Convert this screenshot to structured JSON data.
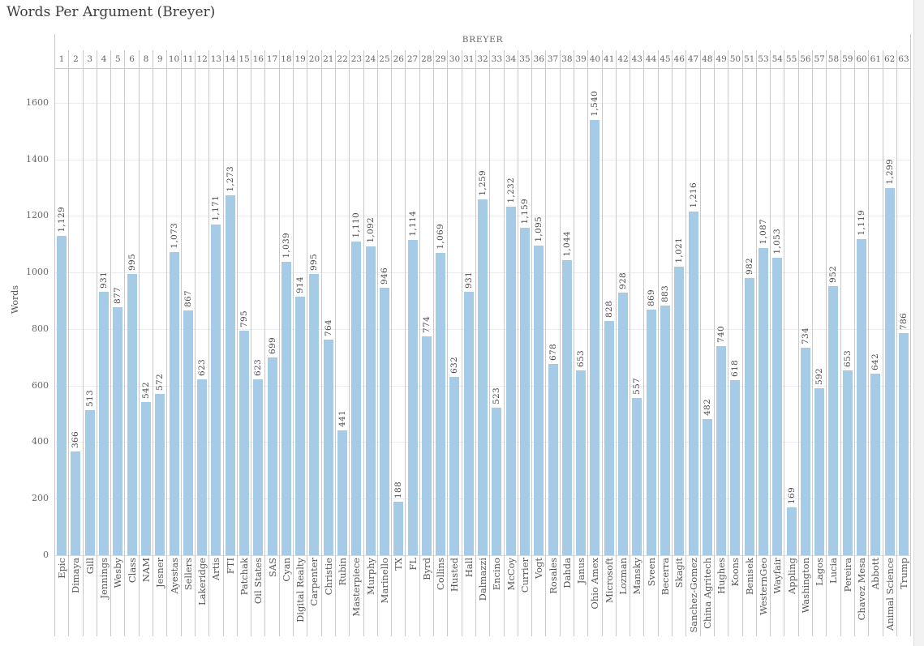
{
  "title": "Words Per Argument (Breyer)",
  "chart_data": {
    "type": "bar",
    "title": "Words Per Argument (Breyer)",
    "top_axis_title": "BREYER",
    "xlabel": "",
    "ylabel": "Words",
    "ylim": [
      0,
      1600
    ],
    "yticks": [
      0,
      200,
      400,
      600,
      800,
      1000,
      1200,
      1400,
      1600
    ],
    "grid": true,
    "bar_color": "#a5cbe6",
    "columns": [
      {
        "num": "1",
        "label": "Epic",
        "value": 1129
      },
      {
        "num": "2",
        "label": "Dimaya",
        "value": 366
      },
      {
        "num": "3",
        "label": "Gill",
        "value": 513
      },
      {
        "num": "4",
        "label": "Jennings",
        "value": 931
      },
      {
        "num": "5",
        "label": "Wesby",
        "value": 877
      },
      {
        "num": "6",
        "label": "Class",
        "value": 995
      },
      {
        "num": "8",
        "label": "NAM",
        "value": 542
      },
      {
        "num": "9",
        "label": "Jesner",
        "value": 572
      },
      {
        "num": "10",
        "label": "Ayestas",
        "value": 1073
      },
      {
        "num": "11",
        "label": "Sellers",
        "value": 867
      },
      {
        "num": "12",
        "label": "Lakeridge",
        "value": 623
      },
      {
        "num": "13",
        "label": "Artis",
        "value": 1171
      },
      {
        "num": "14",
        "label": "FTI",
        "value": 1273
      },
      {
        "num": "15",
        "label": "Patchak",
        "value": 795
      },
      {
        "num": "16",
        "label": "Oil States",
        "value": 623
      },
      {
        "num": "17",
        "label": "SAS",
        "value": 699
      },
      {
        "num": "18",
        "label": "Cyan",
        "value": 1039
      },
      {
        "num": "19",
        "label": "Digital Realty",
        "value": 914
      },
      {
        "num": "20",
        "label": "Carpenter",
        "value": 995
      },
      {
        "num": "21",
        "label": "Christie",
        "value": 764
      },
      {
        "num": "22",
        "label": "Rubin",
        "value": 441
      },
      {
        "num": "23",
        "label": "Masterpiece",
        "value": 1110
      },
      {
        "num": "24",
        "label": "Murphy",
        "value": 1092
      },
      {
        "num": "25",
        "label": "Marinello",
        "value": 946
      },
      {
        "num": "26",
        "label": "TX",
        "value": 188
      },
      {
        "num": "27",
        "label": "FL",
        "value": 1114
      },
      {
        "num": "28",
        "label": "Byrd",
        "value": 774
      },
      {
        "num": "29",
        "label": "Collins",
        "value": 1069
      },
      {
        "num": "30",
        "label": "Husted",
        "value": 632
      },
      {
        "num": "31",
        "label": "Hall",
        "value": 931
      },
      {
        "num": "32",
        "label": "Dalmazzi",
        "value": 1259
      },
      {
        "num": "33",
        "label": "Encino",
        "value": 523
      },
      {
        "num": "34",
        "label": "McCoy",
        "value": 1232
      },
      {
        "num": "35",
        "label": "Currier",
        "value": 1159
      },
      {
        "num": "36",
        "label": "Vogt",
        "value": 1095
      },
      {
        "num": "37",
        "label": "Rosales",
        "value": 678
      },
      {
        "num": "38",
        "label": "Dahda",
        "value": 1044
      },
      {
        "num": "39",
        "label": "Janus",
        "value": 653
      },
      {
        "num": "40",
        "label": "Ohio Amex",
        "value": 1540
      },
      {
        "num": "41",
        "label": "Microsoft",
        "value": 828
      },
      {
        "num": "42",
        "label": "Lozman",
        "value": 928
      },
      {
        "num": "43",
        "label": "Mansky",
        "value": 557
      },
      {
        "num": "44",
        "label": "Sveen",
        "value": 869
      },
      {
        "num": "45",
        "label": "Becerra",
        "value": 883
      },
      {
        "num": "46",
        "label": "Skagit",
        "value": 1021
      },
      {
        "num": "47",
        "label": "Sanchez-Gomez",
        "value": 1216
      },
      {
        "num": "48",
        "label": "China Agritech",
        "value": 482
      },
      {
        "num": "49",
        "label": "Hughes",
        "value": 740
      },
      {
        "num": "50",
        "label": "Koons",
        "value": 618
      },
      {
        "num": "51",
        "label": "Benisek",
        "value": 982
      },
      {
        "num": "53",
        "label": "WesternGeo",
        "value": 1087
      },
      {
        "num": "54",
        "label": "Wayfair",
        "value": 1053
      },
      {
        "num": "55",
        "label": "Appling",
        "value": 169
      },
      {
        "num": "56",
        "label": "Washington",
        "value": 734
      },
      {
        "num": "57",
        "label": "Lagos",
        "value": 592
      },
      {
        "num": "58",
        "label": "Lucia",
        "value": 952
      },
      {
        "num": "59",
        "label": "Pereira",
        "value": 653
      },
      {
        "num": "60",
        "label": "Chavez Mesa",
        "value": 1119
      },
      {
        "num": "61",
        "label": "Abbott",
        "value": 642
      },
      {
        "num": "62",
        "label": "Animal Science",
        "value": 1299
      },
      {
        "num": "63",
        "label": "Trump",
        "value": 786
      }
    ]
  }
}
